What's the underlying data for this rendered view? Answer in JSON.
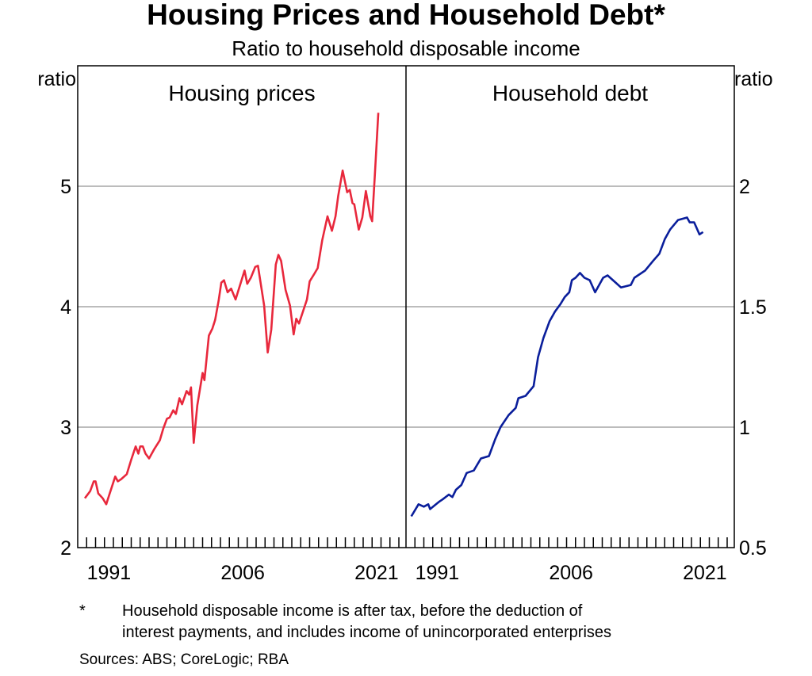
{
  "chart_data": [
    {
      "type": "line",
      "title": "Housing Prices and Household Debt*",
      "subtitle": "Ratio to household disposable income",
      "panel_title": "Housing prices",
      "ylabel": "ratio",
      "ylim": [
        2,
        6
      ],
      "yticks": [
        2,
        3,
        4,
        5
      ],
      "ytick_labels": [
        "2",
        "3",
        "4",
        "5"
      ],
      "xlim": [
        1988,
        2024.8
      ],
      "xtick_labels": [
        "1991",
        "2006",
        "2021"
      ],
      "xtick_values": [
        1991.5,
        2006.5,
        2021.5
      ],
      "grid": true,
      "color": "#e8283c",
      "x": [
        1988.8,
        1989.4,
        1989.8,
        1990.0,
        1990.3,
        1990.8,
        1991.2,
        1991.5,
        1992.2,
        1992.5,
        1992.9,
        1993.5,
        1994.0,
        1994.5,
        1994.8,
        1995.0,
        1995.3,
        1995.6,
        1996.0,
        1996.6,
        1997.2,
        1997.6,
        1998.0,
        1998.3,
        1998.7,
        1999.0,
        1999.4,
        1999.7,
        2000.2,
        2000.5,
        2000.7,
        2001.0,
        2001.4,
        2002.0,
        2002.2,
        2002.7,
        2003.1,
        2003.4,
        2003.8,
        2004.1,
        2004.4,
        2004.8,
        2005.2,
        2005.7,
        2006.7,
        2007.0,
        2007.4,
        2007.9,
        2008.2,
        2008.9,
        2009.3,
        2009.7,
        2010.2,
        2010.5,
        2010.8,
        2011.3,
        2011.8,
        2012.2,
        2012.5,
        2012.8,
        2013.7,
        2014.0,
        2014.5,
        2014.9,
        2015.4,
        2016.0,
        2016.5,
        2016.9,
        2017.2,
        2017.7,
        2018.2,
        2018.5,
        2018.8,
        2019.0,
        2019.5,
        2019.9,
        2020.3,
        2020.8,
        2021.0,
        2021.3,
        2021.7
      ],
      "y": [
        2.41,
        2.47,
        2.55,
        2.55,
        2.45,
        2.41,
        2.36,
        2.43,
        2.59,
        2.55,
        2.57,
        2.61,
        2.73,
        2.84,
        2.78,
        2.84,
        2.84,
        2.78,
        2.74,
        2.82,
        2.89,
        2.99,
        3.07,
        3.08,
        3.14,
        3.11,
        3.24,
        3.19,
        3.3,
        3.27,
        3.33,
        2.87,
        3.18,
        3.45,
        3.39,
        3.76,
        3.82,
        3.89,
        4.05,
        4.2,
        4.22,
        4.12,
        4.15,
        4.06,
        4.3,
        4.19,
        4.24,
        4.33,
        4.34,
        4.01,
        3.62,
        3.81,
        4.35,
        4.43,
        4.38,
        4.14,
        4.01,
        3.77,
        3.9,
        3.86,
        4.06,
        4.21,
        4.27,
        4.32,
        4.55,
        4.75,
        4.63,
        4.75,
        4.92,
        5.13,
        4.95,
        4.97,
        4.86,
        4.85,
        4.64,
        4.74,
        4.96,
        4.75,
        4.71,
        5.08,
        5.61
      ]
    },
    {
      "type": "line",
      "panel_title": "Household debt",
      "ylabel": "ratio",
      "ylim": [
        0.5,
        2.5
      ],
      "yticks": [
        0.5,
        1.0,
        1.5,
        2.0
      ],
      "ytick_labels": [
        "0.5",
        "1.0",
        "1.5",
        "2.0"
      ],
      "xlim": [
        1988,
        2024.8
      ],
      "xtick_labels": [
        "1991",
        "2006",
        "2021"
      ],
      "xtick_values": [
        1991.5,
        2006.5,
        2021.5
      ],
      "grid": true,
      "color": "#0a1e9b",
      "x": [
        1988.6,
        1989.4,
        1990.0,
        1990.5,
        1990.7,
        1991.7,
        1992.1,
        1992.8,
        1993.2,
        1993.6,
        1994.2,
        1994.8,
        1995.6,
        1996.4,
        1997.3,
        1998.0,
        1998.6,
        1999.5,
        2000.3,
        2000.6,
        2001.4,
        2002.3,
        2002.8,
        2003.4,
        2004.1,
        2004.7,
        2005.3,
        2005.8,
        2006.3,
        2006.6,
        2007.0,
        2007.5,
        2008.0,
        2008.6,
        2009.2,
        2010.1,
        2010.6,
        2011.5,
        2012.1,
        2013.2,
        2013.6,
        2014.8,
        2015.7,
        2016.4,
        2017.0,
        2017.6,
        2018.5,
        2019.5,
        2019.8,
        2020.3,
        2020.9,
        2021.3
      ],
      "y": [
        0.63,
        0.68,
        0.67,
        0.68,
        0.66,
        0.69,
        0.7,
        0.72,
        0.71,
        0.74,
        0.76,
        0.81,
        0.82,
        0.87,
        0.88,
        0.95,
        1.0,
        1.05,
        1.08,
        1.12,
        1.13,
        1.17,
        1.29,
        1.37,
        1.44,
        1.48,
        1.51,
        1.54,
        1.56,
        1.61,
        1.62,
        1.64,
        1.62,
        1.61,
        1.56,
        1.62,
        1.63,
        1.6,
        1.58,
        1.59,
        1.62,
        1.65,
        1.69,
        1.72,
        1.78,
        1.82,
        1.86,
        1.87,
        1.85,
        1.85,
        1.8,
        1.81
      ]
    }
  ],
  "footnote": {
    "marker": "*",
    "line1": "Household disposable income is after tax, before the deduction of",
    "line2": "interest payments, and includes income of unincorporated enterprises",
    "sources": "Sources: ABS; CoreLogic; RBA"
  }
}
